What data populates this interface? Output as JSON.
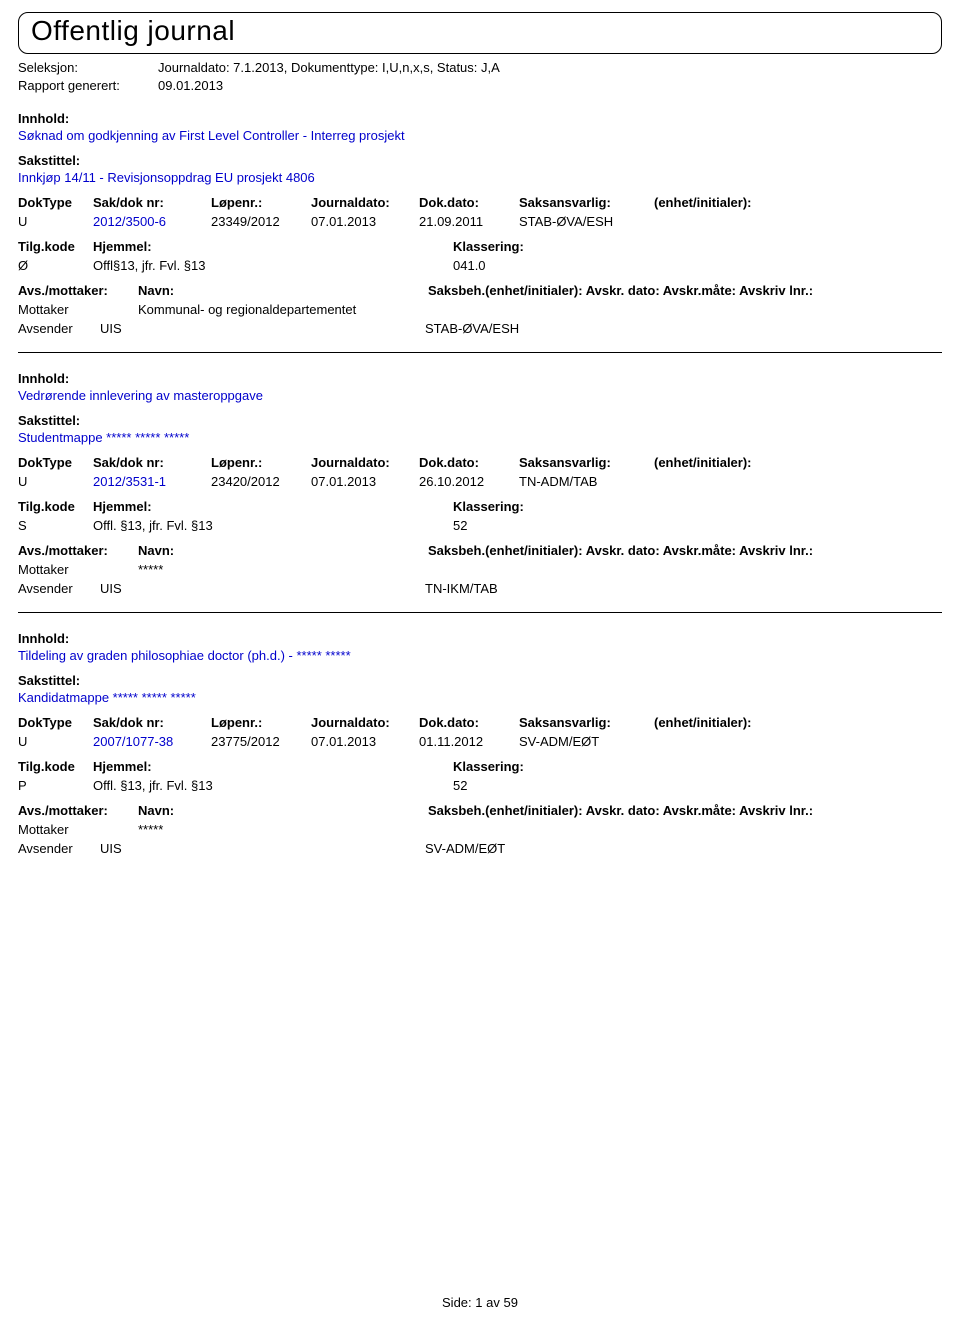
{
  "header": {
    "title": "Offentlig journal",
    "seleksjon_label": "Seleksjon:",
    "seleksjon_value": "Journaldato: 7.1.2013, Dokumenttype: I,U,n,x,s, Status: J,A",
    "rapport_label": "Rapport generert:",
    "rapport_value": "09.01.2013"
  },
  "labels": {
    "innhold": "Innhold:",
    "sakstittel": "Sakstittel:",
    "doktype": "DokType",
    "sakdok": "Sak/dok nr:",
    "lopenr": "Løpenr.:",
    "journaldato": "Journaldato:",
    "dokdato": "Dok.dato:",
    "saksansvarlig": "Saksansvarlig:",
    "enhet": "(enhet/initialer):",
    "tilgkode": "Tilg.kode",
    "hjemmel": "Hjemmel:",
    "klassering": "Klassering:",
    "avsmottaker": "Avs./mottaker:",
    "navn": "Navn:",
    "saksbeh": "Saksbeh.(enhet/initialer): Avskr. dato: Avskr.måte: Avskriv lnr.:",
    "avsender": "Avsender"
  },
  "entries": [
    {
      "innhold": "Søknad om godkjenning av First Level Controller - Interreg prosjekt",
      "sakstittel": "Innkjøp 14/11 - Revisjonsoppdrag EU prosjekt 4806",
      "doktype": "U",
      "sakdok": "2012/3500-6",
      "lopenr": "23349/2012",
      "journaldato": "07.01.2013",
      "dokdato": "21.09.2011",
      "saksansvarlig": "STAB-ØVA/ESH",
      "tilgkode": "Ø",
      "hjemmel": "Offl§13, jfr. Fvl. §13",
      "klassering": "041.0",
      "mottaker_label": "Mottaker",
      "mottaker_navn": "Kommunal- og regionaldepartementet",
      "avsender_navn": "UIS",
      "avsender_unit": "STAB-ØVA/ESH"
    },
    {
      "innhold": "Vedrørende innlevering av masteroppgave",
      "sakstittel": "Studentmappe ***** ***** *****",
      "doktype": "U",
      "sakdok": "2012/3531-1",
      "lopenr": "23420/2012",
      "journaldato": "07.01.2013",
      "dokdato": "26.10.2012",
      "saksansvarlig": "TN-ADM/TAB",
      "tilgkode": "S",
      "hjemmel": "Offl. §13, jfr. Fvl. §13",
      "klassering": "52",
      "mottaker_label": "Mottaker",
      "mottaker_navn": "*****",
      "avsender_navn": "UIS",
      "avsender_unit": "TN-IKM/TAB"
    },
    {
      "innhold": "Tildeling av graden philosophiae doctor (ph.d.) - ***** *****",
      "sakstittel": "Kandidatmappe ***** ***** *****",
      "doktype": "U",
      "sakdok": "2007/1077-38",
      "lopenr": "23775/2012",
      "journaldato": "07.01.2013",
      "dokdato": "01.11.2012",
      "saksansvarlig": "SV-ADM/EØT",
      "tilgkode": "P",
      "hjemmel": "Offl. §13, jfr. Fvl. §13",
      "klassering": "52",
      "mottaker_label": "Mottaker",
      "mottaker_navn": "*****",
      "avsender_navn": "UIS",
      "avsender_unit": "SV-ADM/EØT"
    }
  ],
  "footer": {
    "side_label": "Side:",
    "page_current": "1",
    "av": "av",
    "page_total": "59"
  },
  "colors": {
    "text": "#000000",
    "link": "#0000cc",
    "background": "#ffffff",
    "border": "#000000"
  }
}
